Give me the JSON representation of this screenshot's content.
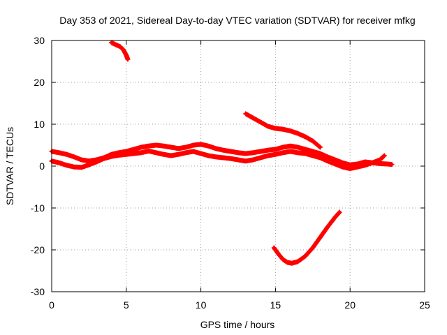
{
  "chart_data": {
    "type": "scatter",
    "title": "Day 353 of 2021, Sidereal Day-to-day VTEC variation (SDTVAR) for receiver mfkg",
    "xlabel": "GPS time / hours",
    "ylabel": "SDTVAR / TECUs",
    "xlim": [
      0,
      25
    ],
    "ylim": [
      -30,
      30
    ],
    "xticks": [
      "0",
      "5",
      "10",
      "15",
      "20",
      "25"
    ],
    "yticks": [
      "-30",
      "-20",
      "-10",
      "0",
      "10",
      "20",
      "30"
    ],
    "grid": true,
    "marker": "plus",
    "series_color": "#ff0000",
    "series": [
      {
        "name": "track-upper",
        "x": [
          0,
          0.5,
          1,
          1.5,
          2,
          2.5,
          3,
          3.5,
          4,
          4.5,
          5,
          5.5,
          6,
          6.5,
          7,
          7.5,
          8,
          8.5,
          9,
          9.5,
          10,
          10.5,
          11,
          11.5,
          12,
          12.5,
          13,
          13.5,
          14,
          14.5,
          15,
          15.5,
          16,
          16.5,
          17,
          17.5,
          18,
          18.5,
          19,
          19.5,
          20,
          20.5,
          21,
          21.5,
          22,
          22.5,
          22.8
        ],
        "y": [
          3.5,
          3.2,
          2.8,
          2.2,
          1.5,
          1.2,
          1.5,
          2.0,
          2.8,
          3.2,
          3.5,
          4.0,
          4.5,
          4.8,
          5.0,
          4.8,
          4.5,
          4.2,
          4.5,
          5.0,
          5.2,
          4.8,
          4.2,
          3.8,
          3.5,
          3.2,
          3.0,
          3.2,
          3.5,
          3.8,
          4.0,
          4.5,
          4.8,
          4.5,
          4.0,
          3.5,
          3.0,
          2.2,
          1.5,
          0.8,
          0.3,
          0.5,
          1.0,
          0.8,
          0.6,
          0.5,
          0.4
        ]
      },
      {
        "name": "track-lower",
        "x": [
          0,
          0.5,
          1,
          1.5,
          2,
          2.5,
          3,
          3.5,
          4,
          4.5,
          5,
          5.5,
          6,
          6.5,
          7,
          7.5,
          8,
          8.5,
          9,
          9.5,
          10,
          10.5,
          11,
          11.5,
          12,
          12.5,
          13,
          13.5,
          14,
          14.5,
          15,
          15.5,
          16,
          16.5,
          17,
          17.5,
          18,
          18.5,
          19,
          19.5,
          20,
          20.5,
          21,
          21.5,
          22,
          22.3
        ],
        "y": [
          1.2,
          0.8,
          0.2,
          -0.2,
          -0.3,
          0.3,
          1.0,
          1.8,
          2.3,
          2.6,
          2.8,
          3.0,
          3.2,
          3.6,
          3.2,
          2.8,
          2.5,
          2.8,
          3.2,
          3.5,
          3.0,
          2.5,
          2.2,
          2.0,
          1.8,
          1.5,
          1.2,
          1.5,
          2.0,
          2.5,
          2.8,
          3.2,
          3.5,
          3.2,
          3.0,
          2.5,
          2.0,
          1.2,
          0.5,
          -0.2,
          -0.6,
          -0.2,
          0.2,
          0.8,
          1.5,
          2.5
        ]
      },
      {
        "name": "arc-top",
        "x": [
          4.0,
          4.3,
          4.6,
          4.8,
          5.0,
          5.1
        ],
        "y": [
          29.5,
          29.0,
          28.5,
          27.8,
          26.5,
          25.5
        ]
      },
      {
        "name": "descending",
        "x": [
          13.0,
          13.5,
          14.0,
          14.5,
          15.0,
          15.5,
          16.0,
          16.5,
          17.0,
          17.5,
          18.0
        ],
        "y": [
          12.5,
          11.5,
          10.5,
          9.5,
          9.0,
          8.8,
          8.4,
          7.8,
          7.0,
          6.0,
          4.5
        ]
      },
      {
        "name": "negative-arc",
        "x": [
          14.9,
          15.2,
          15.5,
          15.8,
          16.1,
          16.5,
          17.0,
          17.5,
          18.0,
          18.5,
          19.0,
          19.3
        ],
        "y": [
          -19.5,
          -21.0,
          -22.3,
          -23.0,
          -23.2,
          -22.8,
          -21.5,
          -19.5,
          -17.0,
          -14.5,
          -12.2,
          -11.0
        ]
      }
    ]
  }
}
